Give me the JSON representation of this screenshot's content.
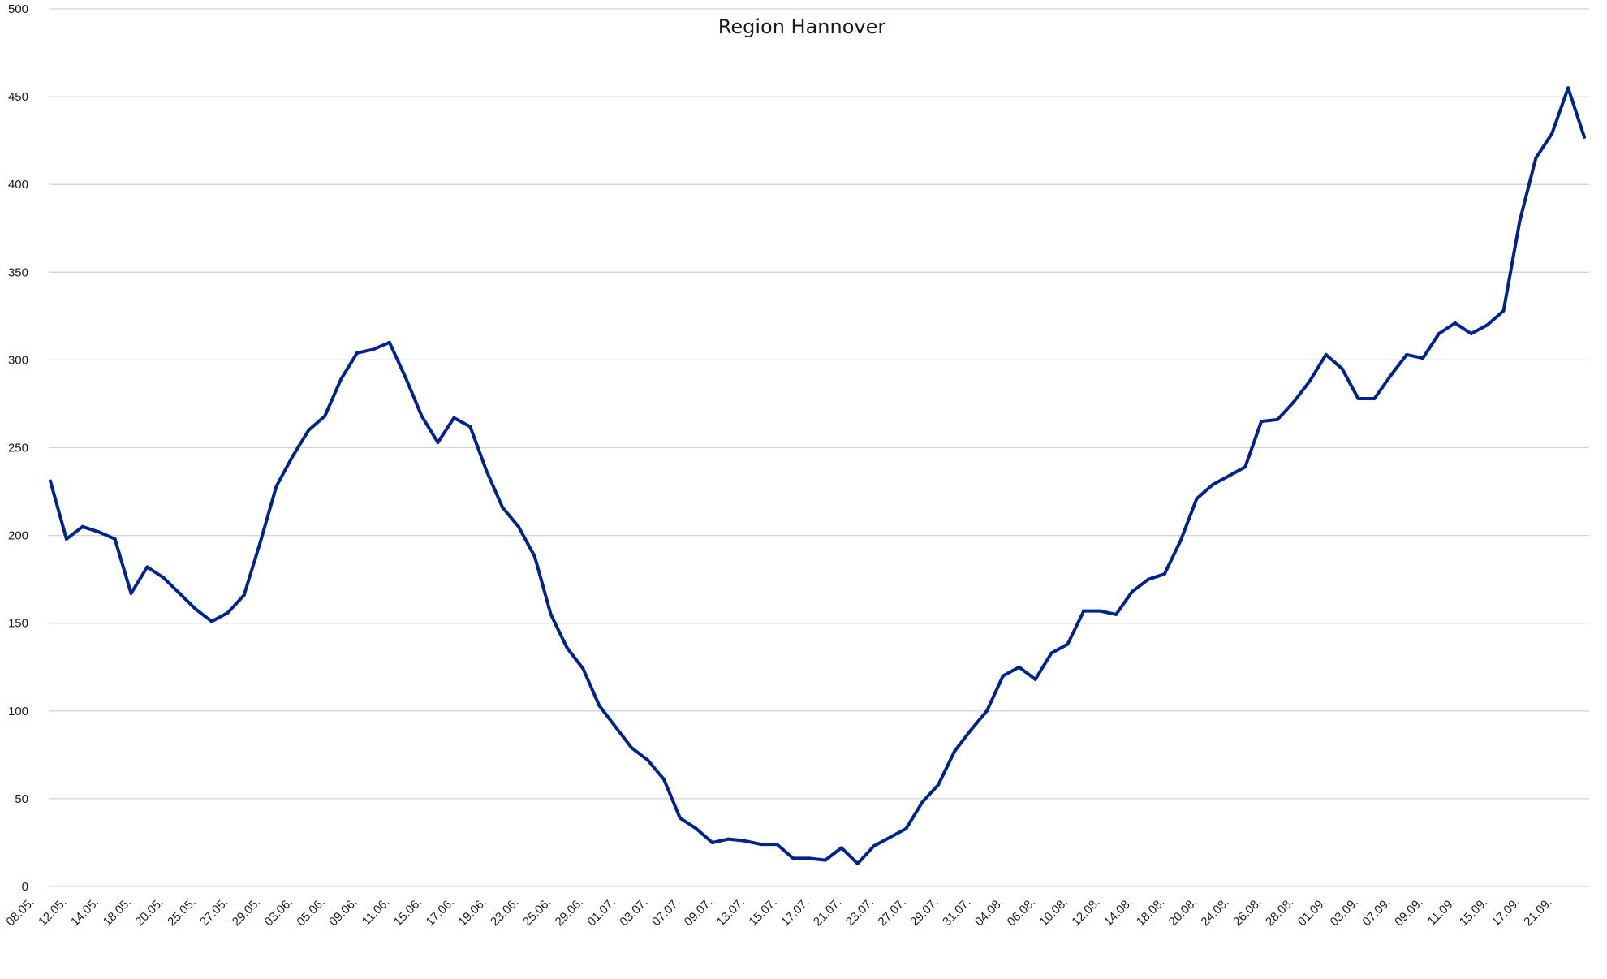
{
  "chart_data": {
    "type": "line",
    "title": "Region Hannover",
    "xlabel": "",
    "ylabel": "",
    "ylim": [
      0,
      500
    ],
    "y_ticks": [
      0,
      50,
      100,
      150,
      200,
      250,
      300,
      350,
      400,
      450,
      500
    ],
    "grid": true,
    "legend": "none",
    "color": "#00238b",
    "x_tick_labels": [
      "08.05.",
      "12.05.",
      "14.05.",
      "18.05.",
      "20.05.",
      "25.05.",
      "27.05.",
      "29.05.",
      "03.06.",
      "05.06.",
      "09.06.",
      "11.06.",
      "15.06.",
      "17.06.",
      "19.06.",
      "23.06.",
      "25.06.",
      "29.06.",
      "01.07.",
      "03.07.",
      "07.07.",
      "09.07.",
      "13.07.",
      "15.07.",
      "17.07.",
      "21.07.",
      "23.07.",
      "27.07.",
      "29.07.",
      "31.07.",
      "04.08.",
      "06.08.",
      "10.08.",
      "12.08.",
      "14.08.",
      "18.08.",
      "20.08.",
      "24.08.",
      "26.08.",
      "28.08.",
      "01.09.",
      "03.09.",
      "07.09.",
      "09.09.",
      "11.09.",
      "15.09.",
      "17.09.",
      "21.09."
    ],
    "series": [
      {
        "values": [
          231,
          198,
          205,
          202,
          198,
          167,
          182,
          176,
          167,
          158,
          151,
          156,
          166,
          196,
          228,
          245,
          260,
          268,
          289,
          304,
          306,
          310,
          290,
          268,
          253,
          267,
          262,
          237,
          216,
          205,
          188,
          155,
          136,
          124,
          103,
          91,
          79,
          72,
          61,
          39,
          33,
          25,
          27,
          26,
          24,
          24,
          16,
          16,
          15,
          22,
          13,
          23,
          28,
          33,
          48,
          58,
          77,
          89,
          100,
          120,
          125,
          118,
          133,
          138,
          157,
          157,
          155,
          168,
          175,
          178,
          197,
          221,
          229,
          234,
          239,
          265,
          266,
          276,
          288,
          303,
          295,
          278,
          278,
          291,
          303,
          301,
          315,
          321,
          315,
          320,
          328,
          379,
          415,
          429,
          455,
          427
        ]
      }
    ]
  }
}
